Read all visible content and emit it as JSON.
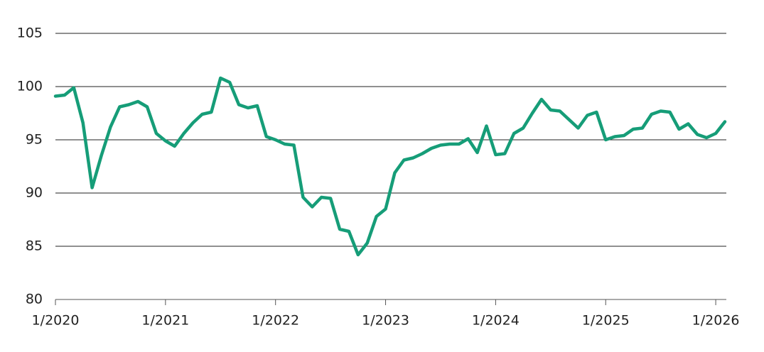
{
  "chart_data": {
    "type": "line",
    "x": [
      "2020-01",
      "2020-02",
      "2020-03",
      "2020-04",
      "2020-05",
      "2020-06",
      "2020-07",
      "2020-08",
      "2020-09",
      "2020-10",
      "2020-11",
      "2020-12",
      "2021-01",
      "2021-02",
      "2021-03",
      "2021-04",
      "2021-05",
      "2021-06",
      "2021-07",
      "2021-08",
      "2021-09",
      "2021-10",
      "2021-11",
      "2021-12",
      "2022-01",
      "2022-02",
      "2022-03",
      "2022-04",
      "2022-05",
      "2022-06",
      "2022-07",
      "2022-08",
      "2022-09",
      "2022-10",
      "2022-11",
      "2022-12",
      "2023-01",
      "2023-02",
      "2023-03",
      "2023-04",
      "2023-05",
      "2023-06",
      "2023-07",
      "2023-08",
      "2023-09",
      "2023-10",
      "2023-11",
      "2023-12",
      "2024-01",
      "2024-02",
      "2024-03",
      "2024-04",
      "2024-05",
      "2024-06",
      "2024-07",
      "2024-08",
      "2024-09",
      "2024-10",
      "2024-11",
      "2024-12",
      "2025-01",
      "2025-02",
      "2025-03",
      "2025-04",
      "2025-05",
      "2025-06",
      "2025-07",
      "2025-08",
      "2025-09",
      "2025-10",
      "2025-11",
      "2025-12",
      "2026-01",
      "2026-02"
    ],
    "series": [
      {
        "color": "#169d78",
        "values": [
          99.1,
          99.2,
          99.9,
          96.6,
          90.5,
          93.5,
          96.2,
          98.1,
          98.3,
          98.6,
          98.1,
          95.6,
          94.9,
          94.4,
          95.6,
          96.6,
          97.4,
          97.6,
          100.8,
          100.4,
          98.3,
          98.0,
          98.2,
          95.3,
          95.0,
          94.6,
          94.5,
          89.6,
          88.7,
          89.6,
          89.5,
          86.6,
          86.4,
          84.2,
          85.3,
          87.8,
          88.5,
          91.9,
          93.1,
          93.3,
          93.7,
          94.2,
          94.5,
          94.6,
          94.6,
          95.1,
          93.8,
          96.3,
          93.6,
          93.7,
          95.6,
          96.1,
          97.5,
          98.8,
          97.8,
          97.7,
          96.9,
          96.1,
          97.3,
          97.6,
          95.0,
          95.3,
          95.4,
          96.0,
          96.1,
          97.4,
          97.7,
          97.6,
          96.0,
          96.5,
          95.5,
          95.2,
          95.6,
          96.7
        ]
      }
    ],
    "xlim": [
      "2020-01",
      "2026-02"
    ],
    "xticks": [
      {
        "value": "2020-01",
        "label": "1/2020"
      },
      {
        "value": "2021-01",
        "label": "1/2021"
      },
      {
        "value": "2022-01",
        "label": "1/2022"
      },
      {
        "value": "2023-01",
        "label": "1/2023"
      },
      {
        "value": "2024-01",
        "label": "1/2024"
      },
      {
        "value": "2025-01",
        "label": "1/2025"
      },
      {
        "value": "2026-01",
        "label": "1/2026"
      }
    ],
    "ylim": [
      80,
      105
    ],
    "yticks": [
      80,
      85,
      90,
      95,
      100,
      105
    ],
    "grid": true
  }
}
